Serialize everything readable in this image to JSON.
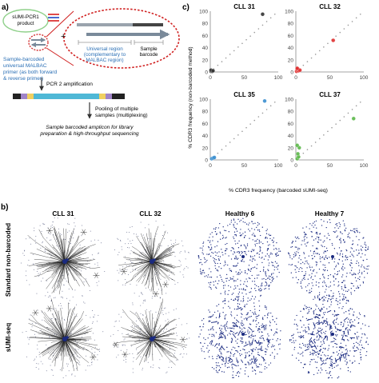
{
  "panel_a": {
    "label": "a)",
    "product_line1": "sUMI-PCR1",
    "product_line2": "product",
    "plus": "+",
    "universal_line1": "Universal region",
    "universal_line2": "(complementary to",
    "universal_line3": "MALBAC region)",
    "sample_line1": "Sample",
    "sample_line2": "barcode",
    "primer_line1": "Sample-barcoded",
    "primer_line2": "universal MALBAC",
    "primer_line3": "primer (as both forward",
    "primer_line4": "& reverse primer)",
    "pcr2": "PCR 2 amplification",
    "pool_line1": "Pooling of multiple",
    "pool_line2": "samples (multiplexing)",
    "final_line1": "Sample barcoded amplicon for library",
    "final_line2": "preparation & high-throughput sequencing"
  },
  "panel_c": {
    "label": "c)",
    "ylabel": "% CDR3 frequency (non-barcoded method)",
    "xlabel": "% CDR3 frequency (barcoded sUMI-seq)"
  },
  "panel_b": {
    "label": "b)",
    "columns": [
      "CLL 31",
      "CLL 32",
      "Healthy 6",
      "Healthy 7"
    ],
    "rows": [
      "Standard non-barcoded",
      "sUMI-seq"
    ]
  },
  "colors": {
    "cll31": "#333333",
    "cll32": "#e03030",
    "cll35": "#3a8fd0",
    "cll37": "#5cb84a",
    "network": "#1a2a80"
  },
  "chart_data": [
    {
      "type": "scatter",
      "title": "CLL 31",
      "xlim": [
        0,
        100
      ],
      "ylim": [
        0,
        100
      ],
      "xticks": [
        0,
        50,
        100
      ],
      "yticks": [
        0,
        20,
        40,
        60,
        80,
        100
      ],
      "points": [
        [
          1,
          1
        ],
        [
          2,
          2
        ],
        [
          3,
          1
        ],
        [
          1,
          3
        ],
        [
          4,
          2
        ],
        [
          77,
          95
        ]
      ],
      "color_key": "cll31"
    },
    {
      "type": "scatter",
      "title": "CLL 32",
      "xlim": [
        0,
        100
      ],
      "ylim": [
        0,
        100
      ],
      "xticks": [
        0,
        50,
        100
      ],
      "yticks": [
        0,
        20,
        40,
        60,
        80,
        100
      ],
      "points": [
        [
          1,
          1
        ],
        [
          2,
          3
        ],
        [
          4,
          2
        ],
        [
          3,
          5
        ],
        [
          6,
          3
        ],
        [
          2,
          6
        ],
        [
          55,
          52
        ]
      ],
      "color_key": "cll32"
    },
    {
      "type": "scatter",
      "title": "CLL 35",
      "xlim": [
        0,
        100
      ],
      "ylim": [
        0,
        100
      ],
      "xticks": [
        0,
        50,
        100
      ],
      "yticks": [
        0,
        20,
        40,
        60,
        80,
        100
      ],
      "points": [
        [
          2,
          2
        ],
        [
          4,
          3
        ],
        [
          6,
          4
        ],
        [
          80,
          97
        ]
      ],
      "color_key": "cll35"
    },
    {
      "type": "scatter",
      "title": "CLL 37",
      "xlim": [
        0,
        100
      ],
      "ylim": [
        0,
        100
      ],
      "xticks": [
        0,
        50,
        100
      ],
      "yticks": [
        0,
        20,
        40,
        60,
        80,
        100
      ],
      "points": [
        [
          2,
          2
        ],
        [
          4,
          5
        ],
        [
          3,
          10
        ],
        [
          5,
          20
        ],
        [
          2,
          24
        ],
        [
          85,
          68
        ]
      ],
      "color_key": "cll37"
    }
  ]
}
